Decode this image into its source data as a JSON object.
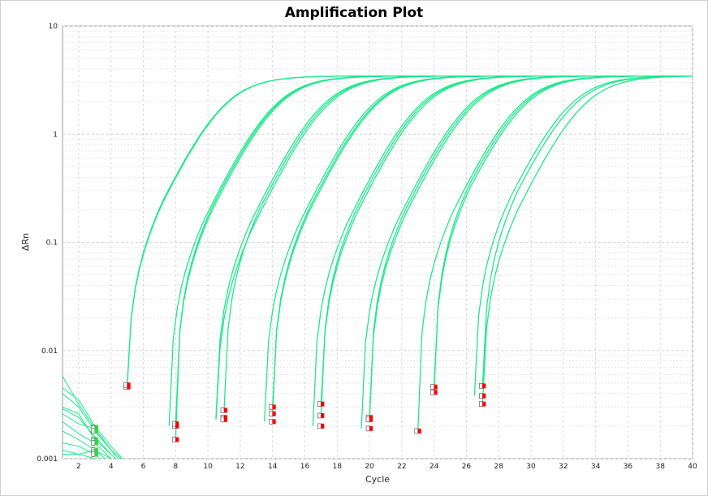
{
  "chart_data": {
    "type": "line",
    "title": "Amplification Plot",
    "xlabel": "Cycle",
    "ylabel": "ΔRn",
    "xlim": [
      1,
      40
    ],
    "ylim": [
      0.001,
      10
    ],
    "y_scale": "log",
    "grid": true,
    "x_ticks": [
      2,
      4,
      6,
      8,
      10,
      12,
      14,
      16,
      18,
      20,
      22,
      24,
      26,
      28,
      30,
      32,
      34,
      36,
      38,
      40
    ],
    "y_ticks": [
      {
        "value": 0.001,
        "label": "0.001"
      },
      {
        "value": 0.01,
        "label": "0.01"
      },
      {
        "value": 0.1,
        "label": "0.1"
      },
      {
        "value": 1,
        "label": "1"
      },
      {
        "value": 10,
        "label": "10"
      }
    ],
    "line_color": "#1ee88c",
    "marker_color": "#ff0000",
    "series": [
      {
        "start": 5,
        "start_value": 0.0046,
        "midpoint": 10.8,
        "plateau": 3.45
      },
      {
        "start": 5,
        "start_value": 0.0048,
        "midpoint": 10.85,
        "plateau": 3.45
      },
      {
        "start": 7.6,
        "start_value": 0.002,
        "midpoint": 13.95,
        "plateau": 3.45
      },
      {
        "start": 8,
        "start_value": 0.0015,
        "midpoint": 14.05,
        "plateau": 3.45
      },
      {
        "start": 8,
        "start_value": 0.0021,
        "midpoint": 14.15,
        "plateau": 3.45
      },
      {
        "start": 10.5,
        "start_value": 0.0024,
        "midpoint": 16.9,
        "plateau": 3.45
      },
      {
        "start": 11,
        "start_value": 0.0028,
        "midpoint": 17.05,
        "plateau": 3.45
      },
      {
        "start": 10.5,
        "start_value": 0.0023,
        "midpoint": 17.2,
        "plateau": 3.45
      },
      {
        "start": 13.5,
        "start_value": 0.0022,
        "midpoint": 19.95,
        "plateau": 3.45
      },
      {
        "start": 14,
        "start_value": 0.0026,
        "midpoint": 20.1,
        "plateau": 3.45
      },
      {
        "start": 14,
        "start_value": 0.003,
        "midpoint": 20.2,
        "plateau": 3.45
      },
      {
        "start": 16.5,
        "start_value": 0.002,
        "midpoint": 22.9,
        "plateau": 3.45
      },
      {
        "start": 17,
        "start_value": 0.0025,
        "midpoint": 23.05,
        "plateau": 3.45
      },
      {
        "start": 17,
        "start_value": 0.0032,
        "midpoint": 23.2,
        "plateau": 3.45
      },
      {
        "start": 19.5,
        "start_value": 0.0019,
        "midpoint": 25.95,
        "plateau": 3.45
      },
      {
        "start": 20,
        "start_value": 0.0024,
        "midpoint": 26.1,
        "plateau": 3.45
      },
      {
        "start": 20,
        "start_value": 0.0023,
        "midpoint": 26.25,
        "plateau": 3.45
      },
      {
        "start": 23,
        "start_value": 0.0018,
        "midpoint": 29.1,
        "plateau": 3.45
      },
      {
        "start": 24,
        "start_value": 0.0041,
        "midpoint": 29.25,
        "plateau": 3.45
      },
      {
        "start": 24,
        "start_value": 0.0046,
        "midpoint": 29.4,
        "plateau": 3.45
      },
      {
        "start": 26.5,
        "start_value": 0.0038,
        "midpoint": 32.2,
        "plateau": 3.45
      },
      {
        "start": 27,
        "start_value": 0.0047,
        "midpoint": 32.45,
        "plateau": 3.45
      },
      {
        "start": 27,
        "start_value": 0.0032,
        "midpoint": 33.05,
        "plateau": 3.45
      }
    ],
    "baseline_noise": [
      [
        [
          1,
          0.0058
        ],
        [
          2,
          0.0032
        ],
        [
          3,
          0.0019
        ],
        [
          4,
          0.0012
        ],
        [
          5,
          0.0009
        ]
      ],
      [
        [
          1,
          0.0045
        ],
        [
          2,
          0.0035
        ],
        [
          3,
          0.002
        ],
        [
          4,
          0.0013
        ],
        [
          5,
          0.0009
        ]
      ],
      [
        [
          1,
          0.003
        ],
        [
          2,
          0.0026
        ],
        [
          3,
          0.0015
        ],
        [
          4,
          0.0011
        ],
        [
          5,
          0.0008
        ]
      ],
      [
        [
          1,
          0.0026
        ],
        [
          2,
          0.0021
        ],
        [
          3,
          0.0019
        ],
        [
          4,
          0.0012
        ],
        [
          5,
          0.0008
        ]
      ],
      [
        [
          1,
          0.0022
        ],
        [
          2,
          0.0017
        ],
        [
          3,
          0.0014
        ],
        [
          4,
          0.001
        ],
        [
          5,
          0.0008
        ]
      ],
      [
        [
          1,
          0.0018
        ],
        [
          2,
          0.0015
        ],
        [
          3,
          0.0012
        ],
        [
          4,
          0.0009
        ]
      ],
      [
        [
          1,
          0.0014
        ],
        [
          2,
          0.0013
        ],
        [
          3,
          0.0011
        ],
        [
          4,
          0.0008
        ]
      ],
      [
        [
          1,
          0.0012
        ],
        [
          2,
          0.0011
        ],
        [
          3,
          0.001
        ],
        [
          4,
          0.0008
        ]
      ],
      [
        [
          1,
          0.0029
        ],
        [
          2,
          0.0024
        ],
        [
          3,
          0.0016
        ],
        [
          4,
          0.0011
        ]
      ],
      [
        [
          1,
          0.0011
        ],
        [
          2,
          0.0011
        ],
        [
          3,
          0.0012
        ],
        [
          4,
          0.001
        ]
      ],
      [
        [
          1,
          0.004
        ],
        [
          2,
          0.003
        ],
        [
          3,
          0.0018
        ],
        [
          4,
          0.0012
        ]
      ]
    ],
    "start_markers": [
      {
        "x": 3,
        "y": 0.00195
      },
      {
        "x": 3,
        "y": 0.0019
      },
      {
        "x": 3,
        "y": 0.0018
      },
      {
        "x": 3,
        "y": 0.0015
      },
      {
        "x": 3,
        "y": 0.00145
      },
      {
        "x": 3,
        "y": 0.0014
      },
      {
        "x": 3,
        "y": 0.0012
      },
      {
        "x": 3,
        "y": 0.00115
      },
      {
        "x": 3,
        "y": 0.0011
      }
    ]
  }
}
